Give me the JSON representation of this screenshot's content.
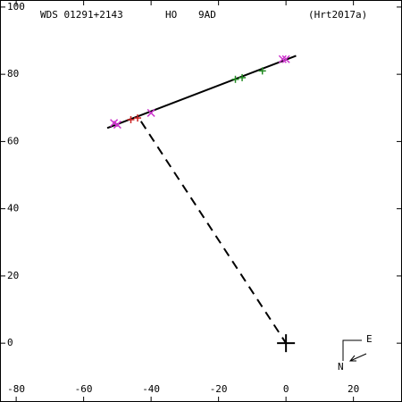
{
  "header": {
    "wds": "WDS 01291+2143",
    "name": "HO",
    "component": "9AD",
    "reference": "(Hrt2017a)"
  },
  "compass": {
    "east": "E",
    "north": "N"
  },
  "chart_data": {
    "type": "scatter",
    "xlim": [
      -84.8,
      34.4
    ],
    "ylim": [
      -17.5,
      102.1
    ],
    "xticks": [
      -80,
      -60,
      -40,
      -20,
      0,
      20
    ],
    "yticks": [
      0,
      20,
      40,
      60,
      80,
      100
    ],
    "series": [
      {
        "color": "#cc33cc",
        "marker": "x",
        "x": [
          -51,
          -50,
          -40,
          0,
          -1
        ],
        "values": [
          65.5,
          65,
          68.5,
          84.5,
          84.5
        ]
      },
      {
        "color": "#cc2222",
        "marker": "plus",
        "x": [
          -46,
          -44
        ],
        "values": [
          66.5,
          67
        ]
      },
      {
        "color": "#228b22",
        "marker": "plus",
        "x": [
          -15,
          -13,
          -7
        ],
        "values": [
          78.5,
          79,
          81
        ]
      }
    ],
    "lines": [
      {
        "color": "#000000",
        "dash": false,
        "x": [
          -53,
          3
        ],
        "values": [
          64,
          85.5
        ]
      },
      {
        "color": "#000000",
        "dash": true,
        "x": [
          -43,
          0
        ],
        "values": [
          66,
          0
        ]
      }
    ],
    "primary": {
      "x": 0,
      "y": 0
    }
  }
}
